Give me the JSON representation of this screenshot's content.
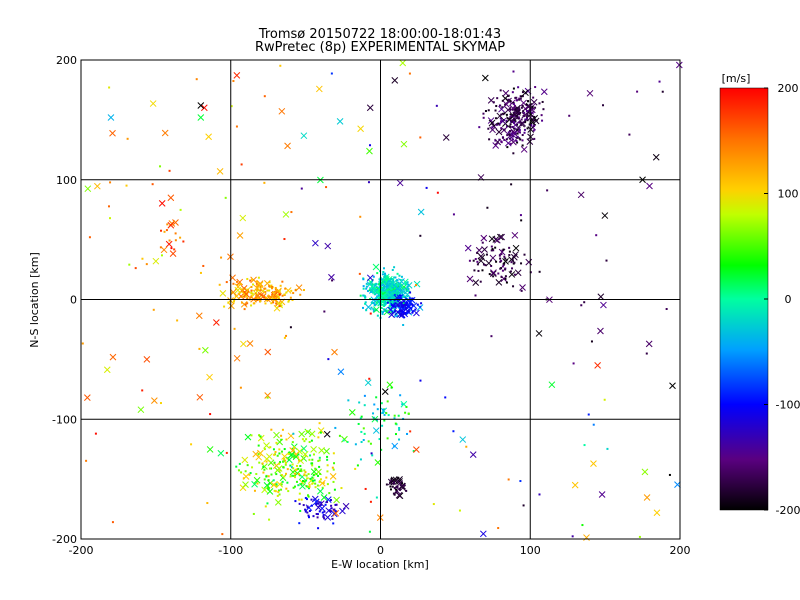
{
  "chart_data": {
    "type": "scatter",
    "title": "Tromsø 20150722 18:00:00-18:01:43",
    "subtitle": "RwPretec (8p) EXPERIMENTAL SKYMAP",
    "xlabel": "E-W location [km]",
    "ylabel": "N-S location [km]",
    "xlim": [
      -200,
      200
    ],
    "ylim": [
      -200,
      200
    ],
    "xticks": [
      -200,
      -100,
      0,
      100,
      200
    ],
    "yticks": [
      -200,
      -100,
      0,
      100,
      200
    ],
    "grid": true,
    "colorbar": {
      "label": "[m/s]",
      "min": -200,
      "max": 200,
      "ticks": [
        200,
        100,
        0,
        -100,
        -200
      ],
      "colormap": "rainbow (black-purple-blue-cyan-green-yellow-orange-red)"
    },
    "marker_types": [
      "dot",
      "x"
    ],
    "clusters": [
      {
        "x": 90,
        "y": 150,
        "velocity_range": [
          -200,
          -160
        ],
        "approx_points": 250
      },
      {
        "x": 80,
        "y": 30,
        "velocity_range": [
          -200,
          -170
        ],
        "approx_points": 90
      },
      {
        "x": 5,
        "y": 5,
        "velocity_range": [
          -50,
          20
        ],
        "approx_points": 450
      },
      {
        "x": 15,
        "y": -5,
        "velocity_range": [
          -120,
          -80
        ],
        "approx_points": 100
      },
      {
        "x": -80,
        "y": 5,
        "velocity_range": [
          90,
          160
        ],
        "approx_points": 180
      },
      {
        "x": -60,
        "y": -140,
        "velocity_range": [
          10,
          120
        ],
        "approx_points": 260
      },
      {
        "x": -40,
        "y": -175,
        "velocity_range": [
          -150,
          -90
        ],
        "approx_points": 60
      },
      {
        "x": 10,
        "y": -155,
        "velocity_range": [
          -200,
          -180
        ],
        "approx_points": 40
      },
      {
        "x": -140,
        "y": 50,
        "velocity_range": [
          120,
          200
        ],
        "approx_points": 15
      },
      {
        "x": 0,
        "y": -100,
        "velocity_range": [
          -60,
          60
        ],
        "approx_points": 70
      }
    ],
    "sample_points": [
      {
        "x": -180,
        "y": 152,
        "v": -40,
        "marker": "x"
      },
      {
        "x": -120,
        "y": 162,
        "v": -200,
        "marker": "x"
      },
      {
        "x": -120,
        "y": 152,
        "v": 20,
        "marker": "x"
      },
      {
        "x": -140,
        "y": 85,
        "v": 160,
        "marker": "x"
      },
      {
        "x": -140,
        "y": 62,
        "v": 180,
        "marker": "x"
      },
      {
        "x": -150,
        "y": 32,
        "v": 90,
        "marker": "x"
      },
      {
        "x": -160,
        "y": -92,
        "v": 60,
        "marker": "x"
      },
      {
        "x": 130,
        "y": -155,
        "v": 110,
        "marker": "x"
      },
      {
        "x": 145,
        "y": -55,
        "v": 180,
        "marker": "x"
      },
      {
        "x": 195,
        "y": -72,
        "v": -200,
        "marker": "x"
      },
      {
        "x": 175,
        "y": 100,
        "v": -200,
        "marker": "x"
      },
      {
        "x": 70,
        "y": 185,
        "v": -200,
        "marker": "x"
      }
    ]
  }
}
